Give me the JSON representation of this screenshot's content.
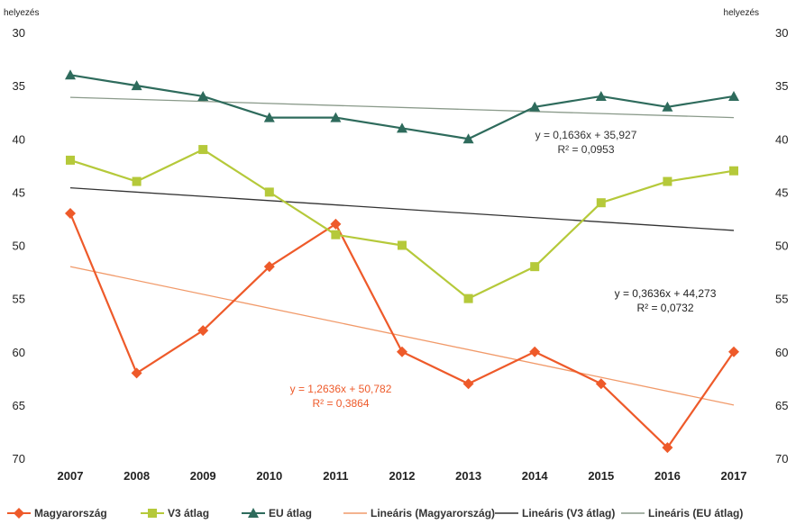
{
  "chart_data": {
    "type": "line",
    "ylabel_left": "helyezés",
    "ylabel_right": "helyezés",
    "categories": [
      "2007",
      "2008",
      "2009",
      "2010",
      "2011",
      "2012",
      "2013",
      "2014",
      "2015",
      "2016",
      "2017"
    ],
    "ylim": [
      70,
      30
    ],
    "yticks": [
      30,
      35,
      40,
      45,
      50,
      55,
      60,
      65,
      70
    ],
    "y_reversed": true,
    "grid": false,
    "legend_position": "bottom",
    "series": [
      {
        "name": "Magyarország",
        "color": "#ee5a2a",
        "marker": "diamond",
        "values": [
          47,
          62,
          58,
          52,
          48,
          60,
          63,
          60,
          63,
          69,
          60
        ]
      },
      {
        "name": "V3 átlag",
        "color": "#b5c93a",
        "marker": "square",
        "values": [
          42,
          44,
          41,
          45,
          49,
          50,
          55,
          52,
          46,
          44,
          43
        ]
      },
      {
        "name": "EU átlag",
        "color": "#2e6b5c",
        "marker": "triangle",
        "values": [
          34,
          35,
          36,
          38,
          38,
          39,
          40,
          37,
          36,
          37,
          36
        ]
      }
    ],
    "trendlines": [
      {
        "name": "Lineáris (Magyarország)",
        "color": "#f19a6a",
        "start": 52.0,
        "end": 65.0,
        "equation": "y = 1,2636x + 50,782",
        "r2": "R² = 0,3864",
        "eq_color": "#ee5a2a"
      },
      {
        "name": "Lineáris (V3 átlag)",
        "color": "#333333",
        "start": 44.6,
        "end": 48.6,
        "equation": "y = 0,3636x + 44,273",
        "r2": "R² = 0,0732",
        "eq_color": "#222222"
      },
      {
        "name": "Lineáris (EU átlag)",
        "color": "#8a9a8a",
        "start": 36.1,
        "end": 38.0,
        "equation": "y = 0,1636x + 35,927",
        "r2": "R² = 0,0953",
        "eq_color": "#333333"
      }
    ]
  }
}
